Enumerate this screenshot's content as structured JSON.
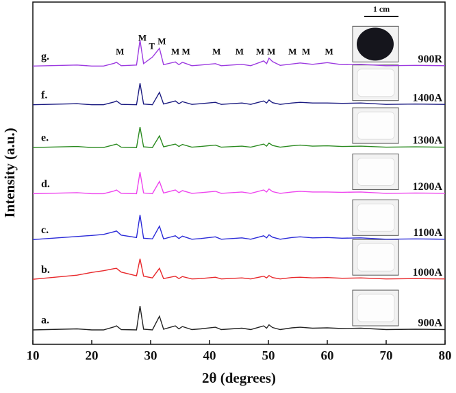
{
  "chart_data": {
    "type": "line",
    "x_label": "2θ (degrees)",
    "y_label": "Intensity (a.u.)",
    "xlim": [
      10,
      80
    ],
    "xticks": [
      10,
      20,
      30,
      40,
      50,
      60,
      70,
      80
    ],
    "ylim": [
      0,
      100
    ],
    "x": [
      10,
      17.5,
      20,
      22,
      23.8,
      24.2,
      25,
      27.6,
      28.2,
      28.8,
      30.3,
      31.5,
      32.2,
      34.2,
      34.8,
      35.4,
      37,
      38.5,
      41,
      42,
      45.5,
      47,
      49.2,
      49.7,
      50.1,
      50.7,
      52,
      54,
      55.4,
      57.5,
      60,
      62.5,
      65.7,
      70,
      75,
      80
    ],
    "series": [
      {
        "name": "900A",
        "label": "a.",
        "color": "#222222",
        "values": [
          4.2,
          4.5,
          4.2,
          4.2,
          5.1,
          5.4,
          4.3,
          4.2,
          11.2,
          4.4,
          4.2,
          8.2,
          4.4,
          5.4,
          4.5,
          5.2,
          4.3,
          4.5,
          5,
          4.3,
          4.7,
          4.3,
          5.4,
          4.7,
          5.7,
          4.9,
          4.3,
          4.8,
          5,
          4.7,
          4.8,
          4.6,
          4.7,
          4.3,
          4.4,
          4.3
        ]
      },
      {
        "name": "1000A",
        "label": "b.",
        "color": "#e8272a",
        "values": [
          19,
          20.2,
          21,
          21.5,
          22.1,
          22.2,
          21.1,
          20,
          25,
          19.9,
          19.4,
          22.2,
          19.2,
          19.9,
          19.2,
          19.8,
          19.1,
          19.2,
          19.6,
          19.1,
          19.4,
          19.1,
          19.9,
          19.4,
          20.1,
          19.5,
          19.1,
          19.5,
          19.6,
          19.4,
          19.5,
          19.3,
          19.4,
          19.1,
          19.2,
          19.1
        ]
      },
      {
        "name": "1100A",
        "label": "c.",
        "color": "#2a2ad8",
        "values": [
          30.6,
          31.5,
          31.8,
          32.1,
          32.9,
          33.1,
          31.9,
          31.2,
          37.8,
          31,
          30.8,
          34.5,
          30.8,
          31.7,
          30.9,
          31.6,
          30.7,
          30.9,
          31.4,
          30.7,
          31.1,
          30.7,
          31.7,
          31.1,
          32,
          31.3,
          30.7,
          31.2,
          31.4,
          31.1,
          31.2,
          31,
          31.1,
          30.7,
          30.8,
          30.7
        ]
      },
      {
        "name": "1200A",
        "label": "d.",
        "color": "#ee44ee",
        "values": [
          44,
          44.3,
          44,
          44,
          44.8,
          45.1,
          44.1,
          44,
          50.3,
          44.2,
          44,
          47.6,
          44.2,
          45.1,
          44.3,
          44.9,
          44.1,
          44.3,
          44.7,
          44.1,
          44.5,
          44.1,
          45.1,
          44.5,
          45.4,
          44.6,
          44.1,
          44.5,
          44.7,
          44.5,
          44.5,
          44.4,
          44.5,
          44.1,
          44.2,
          44.1
        ]
      },
      {
        "name": "1300A",
        "label": "e.",
        "color": "#2a8a1f",
        "values": [
          57.5,
          57.8,
          57.5,
          57.5,
          58.3,
          58.5,
          57.6,
          57.5,
          63.5,
          57.7,
          57.5,
          60.9,
          57.7,
          58.5,
          57.8,
          58.4,
          57.6,
          57.8,
          58.2,
          57.6,
          57.9,
          57.6,
          58.5,
          57.9,
          58.8,
          58.1,
          57.6,
          58,
          58.2,
          57.9,
          58,
          57.8,
          57.9,
          57.6,
          57.7,
          57.6
        ]
      },
      {
        "name": "1400A",
        "label": "f.",
        "color": "#1a1a80",
        "values": [
          70,
          70.3,
          70,
          70,
          70.8,
          71.1,
          70.1,
          70,
          76.3,
          70.2,
          70,
          73.6,
          70.2,
          71.1,
          70.3,
          70.9,
          70.1,
          70.3,
          70.7,
          70.1,
          70.5,
          70.1,
          71.1,
          70.5,
          71.4,
          70.6,
          70.1,
          70.5,
          70.7,
          70.5,
          70.5,
          70.4,
          70.5,
          70.1,
          70.2,
          70.1
        ]
      },
      {
        "name": "900R",
        "label": "g.",
        "color": "#9c3ae0",
        "values": [
          81.3,
          81.6,
          81.3,
          81.3,
          82.1,
          82.4,
          81.4,
          81.6,
          88.9,
          82,
          83.9,
          86.5,
          81.7,
          82.5,
          81.7,
          82.4,
          81.4,
          81.6,
          82,
          81.4,
          81.8,
          81.4,
          82.8,
          82,
          83.6,
          82.6,
          81.5,
          81.9,
          82.2,
          81.8,
          82.3,
          81.7,
          81.8,
          81.4,
          81.5,
          81.4
        ]
      }
    ],
    "peak_labels": [
      {
        "text": "M",
        "x": 24.8
      },
      {
        "text": "M",
        "x": 28.6
      },
      {
        "text": "T",
        "x": 30.2
      },
      {
        "text": "M",
        "x": 31.9
      },
      {
        "text": "M",
        "x": 34.2
      },
      {
        "text": "M",
        "x": 36
      },
      {
        "text": "M",
        "x": 41.2
      },
      {
        "text": "M",
        "x": 45.1
      },
      {
        "text": "M",
        "x": 48.6
      },
      {
        "text": "M",
        "x": 50.5
      },
      {
        "text": "M",
        "x": 54.1
      },
      {
        "text": "M",
        "x": 56.4
      },
      {
        "text": "M",
        "x": 60.3
      }
    ],
    "scale_bar": "1 cm"
  }
}
